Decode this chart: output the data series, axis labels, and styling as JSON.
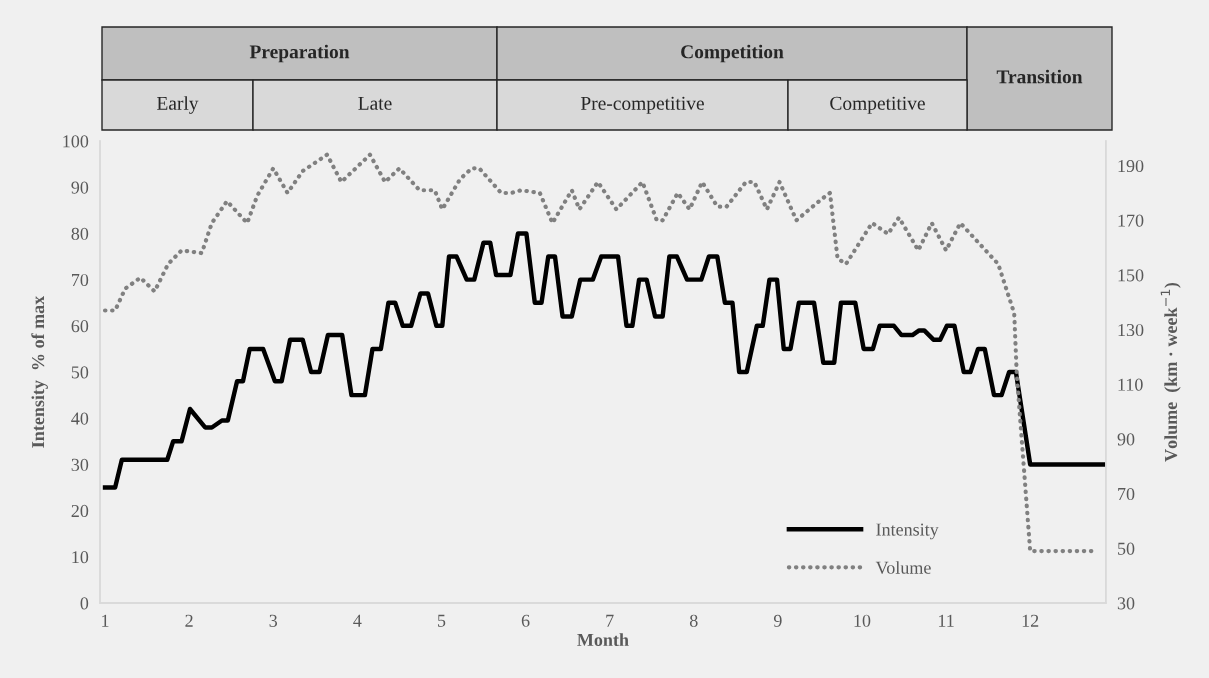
{
  "chart_data": {
    "type": "line",
    "xlabel": "Month",
    "ylabel": "Intensity  % of max",
    "y2label": "Volume  (km · week$^{−1}$)",
    "xlim": [
      0.94,
      12.9
    ],
    "xticks": [
      1,
      2,
      3,
      4,
      5,
      6,
      7,
      8,
      9,
      10,
      11,
      12
    ],
    "ylim": [
      0,
      100
    ],
    "yticks": [
      0,
      10,
      20,
      30,
      40,
      50,
      60,
      70,
      80,
      90,
      100
    ],
    "y2lim": [
      30,
      199
    ],
    "y2ticks": [
      30,
      50,
      70,
      90,
      110,
      130,
      150,
      170,
      190
    ],
    "grid": false,
    "legend": "bottom right",
    "annotations": [
      "Preparation",
      "Competition",
      "Transition",
      "Early",
      "Late",
      "Pre-competitive",
      "Competitive"
    ],
    "series": [
      {
        "name": "Intensity",
        "color": "#000000",
        "line_style": "solid",
        "axis": "y",
        "x": [
          1.0,
          1.12,
          1.2,
          1.74,
          1.81,
          1.91,
          2.01,
          2.19,
          2.27,
          2.39,
          2.46,
          2.57,
          2.64,
          2.72,
          2.88,
          3.02,
          3.1,
          3.2,
          3.35,
          3.45,
          3.55,
          3.65,
          3.82,
          3.93,
          4.09,
          4.18,
          4.28,
          4.37,
          4.45,
          4.54,
          4.64,
          4.75,
          4.84,
          4.94,
          5.01,
          5.09,
          5.18,
          5.3,
          5.39,
          5.5,
          5.58,
          5.65,
          5.82,
          5.91,
          6.01,
          6.11,
          6.19,
          6.27,
          6.35,
          6.44,
          6.55,
          6.65,
          6.8,
          6.9,
          7.1,
          7.2,
          7.27,
          7.35,
          7.44,
          7.54,
          7.63,
          7.71,
          7.8,
          7.92,
          8.09,
          8.18,
          8.28,
          8.37,
          8.46,
          8.54,
          8.63,
          8.75,
          8.82,
          8.9,
          8.99,
          9.07,
          9.15,
          9.25,
          9.43,
          9.54,
          9.67,
          9.75,
          9.92,
          10.02,
          10.13,
          10.21,
          10.38,
          10.47,
          10.6,
          10.68,
          10.74,
          10.85,
          10.93,
          11.01,
          11.1,
          11.21,
          11.29,
          11.38,
          11.46,
          11.57,
          11.66,
          11.75,
          11.83,
          12.0,
          12.89
        ],
        "values": [
          25,
          25,
          31,
          31,
          35,
          35,
          42,
          38,
          38,
          39.5,
          39.5,
          48,
          48,
          55,
          55,
          48,
          48,
          57,
          57,
          50,
          50,
          58,
          58,
          45,
          45,
          55,
          55,
          65,
          65,
          60,
          60,
          67,
          67,
          60,
          60,
          75,
          75,
          70,
          70,
          78,
          78,
          71,
          71,
          80,
          80,
          65,
          65,
          75,
          75,
          62,
          62,
          70,
          70,
          75,
          75,
          60,
          60,
          70,
          70,
          62,
          62,
          75,
          75,
          70,
          70,
          75,
          75,
          65,
          65,
          50,
          50,
          60,
          60,
          70,
          70,
          55,
          55,
          65,
          65,
          52,
          52,
          65,
          65,
          55,
          55,
          60,
          60,
          58,
          58,
          59,
          59,
          57,
          57,
          60,
          60,
          50,
          50,
          55,
          55,
          45,
          45,
          50,
          50,
          30,
          30
        ]
      },
      {
        "name": "Volume",
        "color": "#808080",
        "line_style": "dotted",
        "axis": "y2",
        "x": [
          1.0,
          1.12,
          1.24,
          1.42,
          1.59,
          1.75,
          1.91,
          2.15,
          2.27,
          2.45,
          2.69,
          2.81,
          3.0,
          3.17,
          3.35,
          3.64,
          3.81,
          4.15,
          4.33,
          4.5,
          4.74,
          4.92,
          5.01,
          5.22,
          5.36,
          5.45,
          5.71,
          5.83,
          5.95,
          6.17,
          6.32,
          6.55,
          6.64,
          6.86,
          7.08,
          7.39,
          7.56,
          7.63,
          7.81,
          7.95,
          8.1,
          8.28,
          8.39,
          8.62,
          8.72,
          8.87,
          9.02,
          9.22,
          9.53,
          9.62,
          9.71,
          9.81,
          10.12,
          10.31,
          10.44,
          10.67,
          10.83,
          11.0,
          11.17,
          11.62,
          11.81,
          11.84,
          12.0,
          12.78
        ],
        "values": [
          137,
          137,
          145,
          149,
          144,
          154,
          159,
          158,
          169,
          177,
          169,
          179,
          189,
          180,
          188,
          194,
          184,
          194,
          184,
          189,
          181,
          181,
          174,
          185,
          189,
          189,
          180,
          180,
          181,
          180,
          169,
          181,
          174,
          184,
          174,
          184,
          170,
          170,
          180,
          174,
          184,
          175,
          175,
          184,
          184,
          174,
          184,
          170,
          178,
          180,
          156,
          154,
          169,
          165,
          171,
          159,
          169,
          159,
          169,
          154,
          136,
          114,
          49,
          49
        ]
      }
    ]
  }
}
